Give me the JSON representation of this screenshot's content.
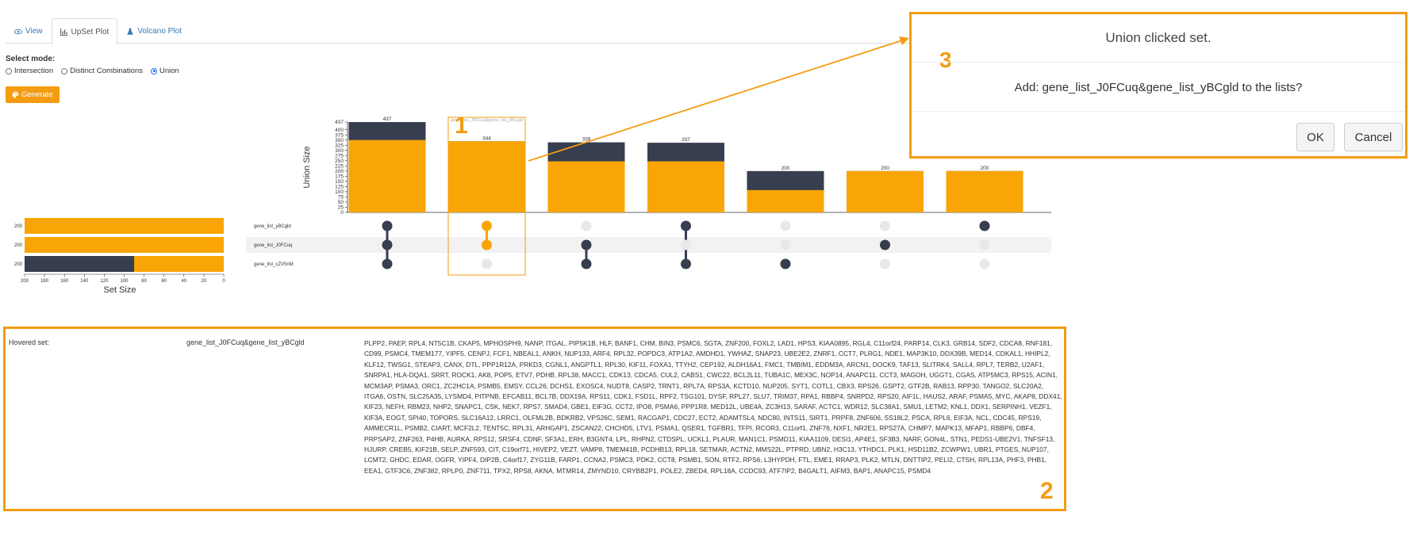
{
  "tabs": [
    {
      "label": "View",
      "icon": "eye-icon"
    },
    {
      "label": "UpSet Plot",
      "icon": "bar-chart-icon"
    },
    {
      "label": "Volcano Plot",
      "icon": "flask-icon"
    }
  ],
  "mode": {
    "label": "Select mode:",
    "options": [
      "Intersection",
      "Distinct Combinations",
      "Union"
    ],
    "selected": "Union"
  },
  "generate_label": "Generate",
  "chart_data": {
    "type": "upset",
    "mode": "union",
    "ylabel": "Union Size",
    "set_size_label": "Set Size",
    "y_ticks": [
      0,
      25,
      50,
      75,
      100,
      125,
      150,
      175,
      200,
      225,
      250,
      275,
      300,
      325,
      350,
      375,
      400,
      437
    ],
    "ylim": [
      0,
      437
    ],
    "sets": [
      {
        "name": "gene_list_yBCgld",
        "size": 200,
        "size_label": "200",
        "overlap": 0
      },
      {
        "name": "gene_list_J0FCuq",
        "size": 200,
        "size_label": "200",
        "overlap": 0
      },
      {
        "name": "gene_list_cZV5nM",
        "size": 200,
        "size_label": "200",
        "overlap": 110
      }
    ],
    "set_size_ticks": [
      200,
      180,
      160,
      140,
      120,
      100,
      80,
      60,
      40,
      20,
      0
    ],
    "combinations": [
      {
        "label": "437",
        "total": 437,
        "highlight": 350,
        "members": [
          0,
          1,
          2
        ],
        "name": ""
      },
      {
        "label": "344",
        "total": 344,
        "highlight": 344,
        "members": [
          0,
          1
        ],
        "name": "gene_list_J0FCuq&gene_list_yBCgld",
        "selected": true
      },
      {
        "label": "339",
        "total": 339,
        "highlight": 247,
        "members": [
          1,
          2
        ],
        "name": ""
      },
      {
        "label": "337",
        "total": 337,
        "highlight": 247,
        "members": [
          0,
          2
        ],
        "name": ""
      },
      {
        "label": "200",
        "total": 200,
        "highlight": 108,
        "members": [
          2
        ],
        "name": ""
      },
      {
        "label": "200",
        "total": 200,
        "highlight": 200,
        "members": [
          1
        ],
        "name": ""
      },
      {
        "label": "200",
        "total": 200,
        "highlight": 200,
        "members": [
          0
        ],
        "name": ""
      }
    ],
    "colors": {
      "bar": "#f9a505",
      "dark": "#363e4f",
      "grid_row": "#f2f2f2",
      "inactive_dot": "#e8e8e8",
      "selection_box": "#f39c12"
    }
  },
  "hovered": {
    "label": "Hovered set:",
    "set_name": "gene_list_J0FCuq&gene_list_yBCgld",
    "genes": "PLPP2, PAEP, RPL4, NT5C1B, CKAP5, MPHOSPH9, NANP, ITGAL, PIP5K1B, HLF, BANF1, CHM, BIN3, PSMC6, SGTA, ZNF200, FOXL2, LAD1, HPS3, KIAA0895, RGL4, C11orf24, PARP14, CLK3, GRB14, SDF2, CDCA8, RNF181, CD99, PSMC4, TMEM177, YIPF5, CENPJ, FCF1, NBEAL1, ANKH, NUP133, ARF4, RPL32, POPDC3, ATP1A2, AMDHD1, YWHAZ, SNAP23, UBE2E2, ZNRF1, CCT7, PLRG1, NDE1, MAP3K10, DDX39B, MED14, CDKAL1, HHIPL2, KLF12, TWSG1, STEAP3, CANX, DTL, PPP1R12A, PRKD3, CGNL1, ANGPTL1, RPL30, KIF11, FOXA1, TTYH2, CEP192, ALDH16A1, FMC1, TMBIM1, EDDM3A, ARCN1, DOCK9, TAF13, SLITRK4, SALL4, RPL7, TERB2, U2AF1, SNRPA1, HLA-DQA1, SRRT, ROCK1, AK8, POP5, ETV7, PDHB, RPL38, MACC1, CDK13, CDCA5, CUL2, CABS1, CWC22, BCL2L11, TUBA1C, MEX3C, NOP14, ANAPC11, CCT3, MAGOH, UGGT1, CGAS, ATP5MC3, RPS15, ACIN1, MCM3AP, PSMA3, ORC1, ZC2HC1A, PSMB5, EMSY, CCL26, DCHS1, EXOSC4, NUDT8, CASP2, TRNT1, RPL7A, RPS3A, KCTD10, NUP205, SYT1, COTL1, CBX3, RPS26, GSPT2, GTF2B, RAB13, RPP30, TANGO2, SLC20A2, ITGA6, OSTN, SLC25A35, LYSMD4, PITPNB, EFCAB11, BCL7B, DDX19A, RPS11, CDK1, FSD1L, RPF2, TSG101, DYSF, RPL27, SLU7, TRIM37, RPA1, RBBP4, SNRPD2, RPS20, AIF1L, HAUS2, ARAF, PSMA5, MYC, AKAP8, DDX41, KIF23, NEFH, RBM23, NHP2, SNAPC1, CSK, NEK7, RPS7, SMAD4, GBE1, EIF3G, CCT2, IPO8, PSMA6, PPP1R8, MED12L, UBE4A, ZC3H13, SARAF, ACTC1, WDR12, SLC38A1, SMU1, LETM2, KNL1, DDX1, SERPINH1, VEZF1, KIF3A, EOGT, SPI40, TOPORS, SLC16A12, LRRC1, OLFML2B, BDKRB2, VPS26C, SEM1, RACGAP1, CDC27, ECT2, ADAMTSL4, NDC80, INTS11, SIRT1, PRPF8, ZNF606, SS18L2, PSCA, RPL6, EIF3A, NCL, CDC45, RPS19, AMMECR1L, PSMB2, CIART, MCF2L2, TENT5C, RPL31, ARHGAP1, ZSCAN22, CHCHD5, LTV1, PSMA1, QSER1, TGFBR1, TFPI, RCOR3, C11orf1, ZNF76, NXF1, NR2E1, RPS27A, CHMP7, MAPK13, MFAP1, RBBP6, DBF4, PRPSAP2, ZNF263, P4HB, AURKA, RPS12, SRSF4, CDNF, SF3A1, ERH, B3GNT4, LPL, RHPN2, CTDSPL, UCKL1, PLAUR, MAN1C1, PSMD11, KIAA1109, DESI1, AP4E1, SF3B3, NARF, GON4L, STN1, PEDS1-UBE2V1, TNFSF13, HJURP, CREB5, KIF21B, SELP, ZNF593, CIT, C19orf71, HIVEP2, VEZT, VAMP8, TMEM41B, PCDHB13, RPL18, SETMAR, ACTN2, MMS22L, PTPRD, UBN2, H3C13, YTHDC1, PLK1, HSD11B2, ZCWPW1, UBR1, PTGES, NUP107, LCMT2, GHDC, EDAR, OGFR, YIPF4, DIP2B, C4orf17, ZYG11B, FARP1, CCNA2, PSMC3, PDK2, CCT8, PSMB1, SON, RTF2, RPS6, L3HYPDH, FTL, EME1, RRAP3, PLK2, MTLN, DNTTIP2, PELI2, CTSH, RPL13A, PHF3, PHB1, EEA1, GTF3C6, ZNF382, RPLP0, ZNF711, TPX2, RPS8, AKNA, MTMR14, ZMYND10, CRYBB2P1, POLE2, ZBED4, RPL18A, CCDC93, ATF7IP2, B4GALT1, AIFM3, BAP1, ANAPC15, PSMD4"
  },
  "dialog": {
    "title": "Union clicked set.",
    "message": "Add: gene_list_J0FCuq&gene_list_yBCgld to the lists?",
    "ok_label": "OK",
    "cancel_label": "Cancel"
  },
  "callouts": {
    "one": "1",
    "two": "2",
    "three": "3"
  },
  "accent": "#f39c12"
}
